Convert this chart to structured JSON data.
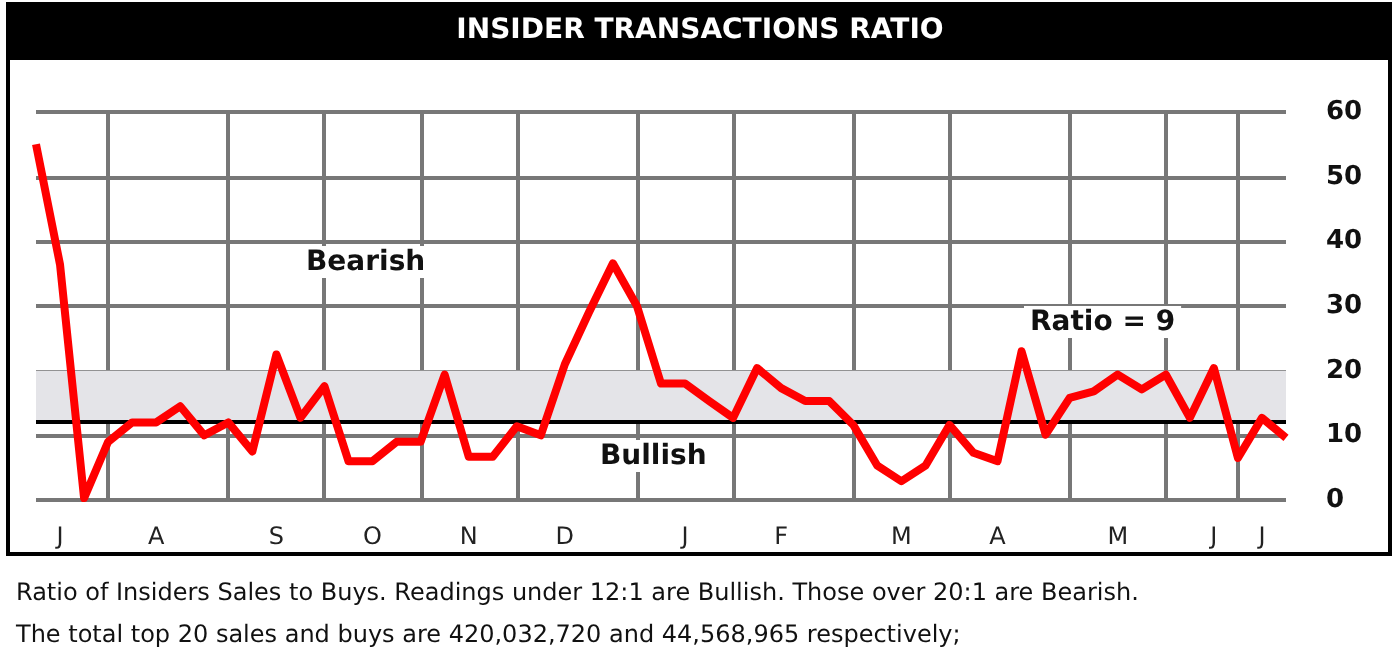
{
  "chart_data": {
    "type": "line",
    "title": "INSIDER TRANSACTIONS RATIO",
    "categories": [
      null,
      "J",
      null,
      null,
      null,
      "A",
      null,
      null,
      null,
      null,
      "S",
      null,
      null,
      null,
      "O",
      null,
      null,
      null,
      "N",
      null,
      null,
      null,
      "D",
      null,
      null,
      null,
      null,
      "J",
      null,
      null,
      null,
      "F",
      null,
      null,
      null,
      null,
      "M",
      null,
      null,
      null,
      "A",
      null,
      null,
      null,
      null,
      "M",
      null,
      null,
      null,
      "J",
      null,
      "J",
      null
    ],
    "series": [
      {
        "color": "#ff0000",
        "values": [
          55,
          36.4,
          0.3,
          9,
          12,
          12,
          14.5,
          10,
          12,
          7.5,
          22.5,
          12.7,
          17.6,
          6,
          6,
          9,
          9,
          19.4,
          6.7,
          6.7,
          11.4,
          10,
          21,
          29,
          36.6,
          30,
          18,
          18,
          15.3,
          12.7,
          20.4,
          17.3,
          15.3,
          15.3,
          11.6,
          5.3,
          2.9,
          5.3,
          11.6,
          7.3,
          6,
          23,
          10.1,
          15.8,
          16.8,
          19.4,
          17.1,
          19.4,
          12.7,
          20.4,
          6.5,
          12.7,
          9.6
        ]
      }
    ],
    "ylim": [
      0,
      60
    ],
    "yticks": [
      0,
      10,
      20,
      30,
      40,
      50,
      60
    ],
    "grid": true,
    "marker": "none",
    "line_style": "solid",
    "bands": [
      {
        "axis": "y",
        "from": 12,
        "to": 20,
        "color": "#e4e4e8"
      }
    ],
    "ref_lines": [
      {
        "axis": "y",
        "value": 12,
        "color": "#000000",
        "line_style": "solid"
      }
    ],
    "annotations": [
      "Bearish",
      "Bullish",
      "Ratio = 9",
      "Ratio of Insiders Sales to Buys. Readings under 12:1 are Bullish. Those over 20:1 are Bearish.",
      "The total top 20 sales and buys are 420,032,720 and 44,568,965 respectively;"
    ]
  }
}
